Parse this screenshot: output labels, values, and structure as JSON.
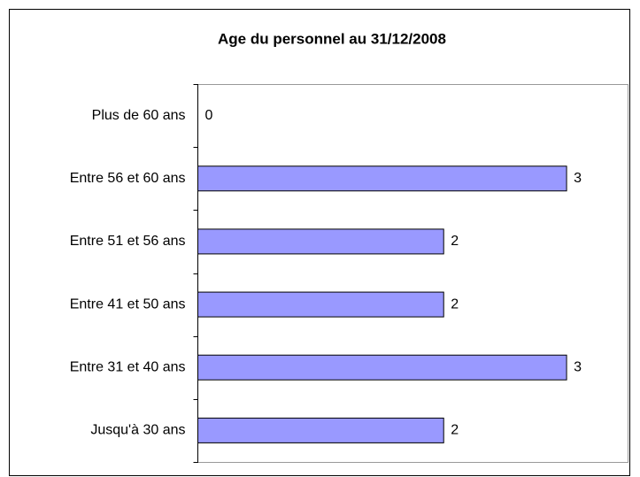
{
  "chart_data": {
    "type": "bar",
    "orientation": "horizontal",
    "title": "Age du personnel au 31/12/2008",
    "categories": [
      "Plus de 60 ans",
      "Entre 56 et 60 ans",
      "Entre 51 et 56 ans",
      "Entre 41 et 50 ans",
      "Entre 31 et 40 ans",
      "Jusqu'à 30 ans"
    ],
    "values": [
      0,
      3,
      2,
      2,
      3,
      2
    ],
    "color": "#9999ff",
    "xlim": [
      0,
      3.5
    ]
  }
}
